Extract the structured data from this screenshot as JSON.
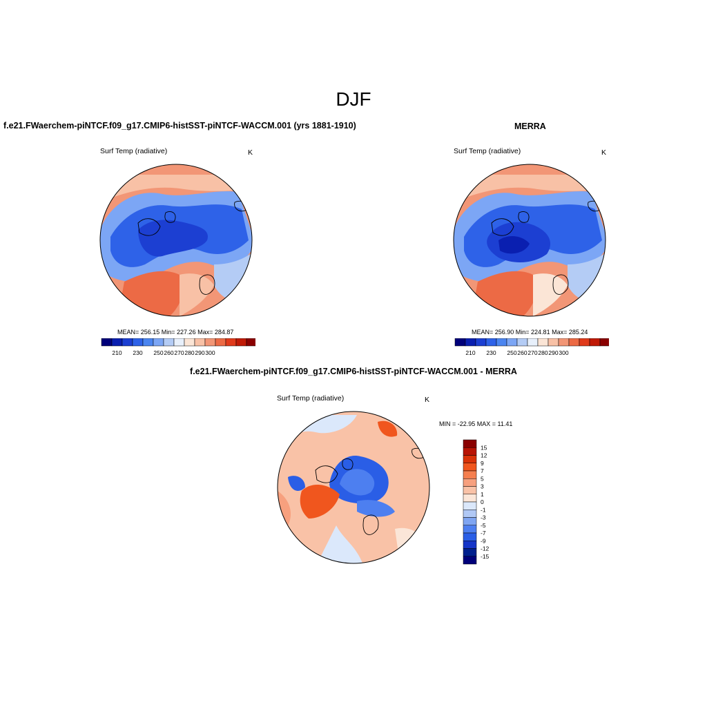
{
  "figure": {
    "title": "DJF"
  },
  "panels": {
    "model": {
      "title": "f.e21.FWaerchem-piNTCF.f09_g17.CMIP6-histSST-piNTCF-WACCM.001 (yrs 1881-1910)",
      "variable": "Surf Temp (radiative)",
      "units": "K",
      "stats": "MEAN= 256.15   Min= 227.26   Max= 284.87"
    },
    "obs": {
      "title": "MERRA",
      "variable": "Surf Temp (radiative)",
      "units": "K",
      "stats": "MEAN= 256.90   Min= 224.81   Max= 285.24"
    },
    "diff": {
      "title": "f.e21.FWaerchem-piNTCF.f09_g17.CMIP6-histSST-piNTCF-WACCM.001 - MERRA",
      "variable": "Surf Temp (radiative)",
      "units": "K",
      "stats": "MIN = -22.95 MAX =  11.41"
    }
  },
  "colorbars": {
    "absolute": {
      "labels": [
        "210",
        "230",
        "250",
        "260",
        "270",
        "280",
        "290",
        "300"
      ],
      "colors": [
        "#00007a",
        "#0a1fb0",
        "#1c3fd2",
        "#2e62e8",
        "#4b85f0",
        "#7ca6f5",
        "#b4ccf5",
        "#e8f0fb",
        "#fbe5d6",
        "#f8c1a6",
        "#f29676",
        "#ec6a45",
        "#e03a1b",
        "#c01a06",
        "#8a0000"
      ]
    },
    "difference": {
      "labels": [
        "15",
        "12",
        "9",
        "7",
        "5",
        "3",
        "1",
        "0",
        "-1",
        "-3",
        "-5",
        "-7",
        "-9",
        "-12",
        "-15"
      ],
      "colors": [
        "#8a0000",
        "#b81404",
        "#d93208",
        "#f0561e",
        "#f57f4f",
        "#f7a07e",
        "#f9c2a7",
        "#fbe6d8",
        "#dbe8fb",
        "#b0c8f5",
        "#7fa5f2",
        "#4d7ff0",
        "#2a5ee6",
        "#1535c8",
        "#00208e",
        "#00007a"
      ]
    }
  }
}
